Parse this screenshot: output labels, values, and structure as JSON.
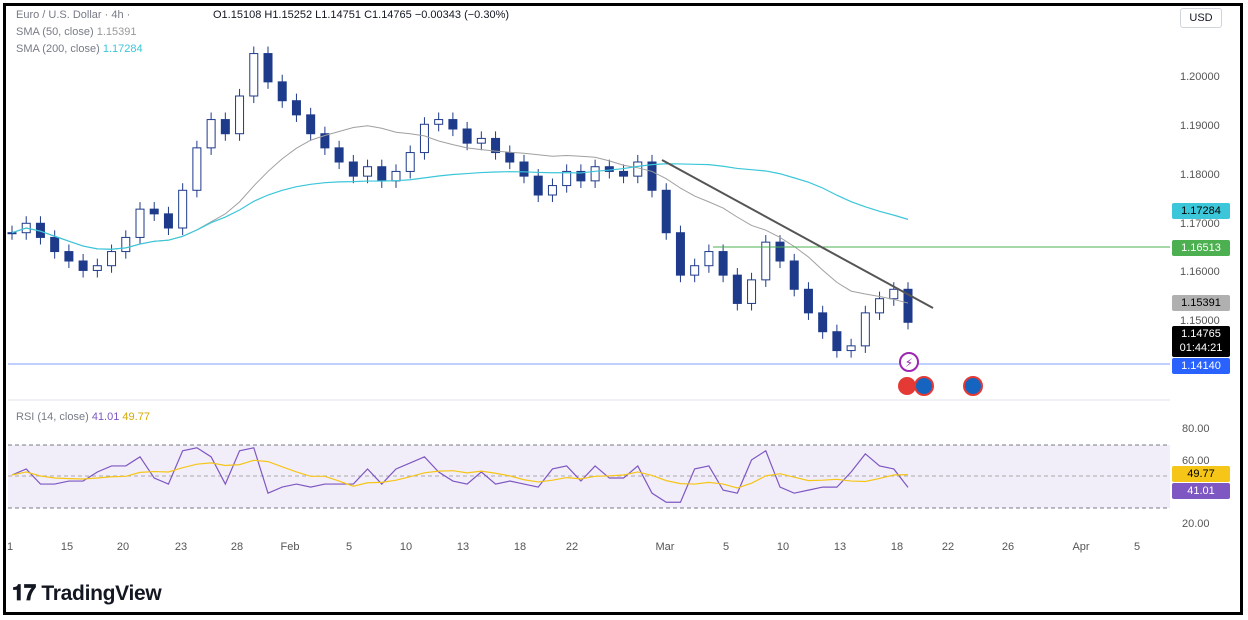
{
  "header": {
    "symbol": "Euro / U.S. Dollar · 4h ·",
    "ohlc": "O1.15108  H1.15252  L1.14751  C1.14765  −0.00343 (−0.30%)",
    "sma50_label": "SMA (50, close)",
    "sma50_value": "1.15391",
    "sma200_label": "SMA (200, close)",
    "sma200_value": "1.17284",
    "currency": "USD"
  },
  "price_axis": [
    "1.20000",
    "1.19000",
    "1.18000",
    "1.17000",
    "1.16000",
    "1.15000"
  ],
  "price_tags": {
    "sma200": "1.17284",
    "resistance": "1.16513",
    "sma50": "1.15391",
    "last": "1.14765",
    "countdown": "01:44:21",
    "support": "1.14140"
  },
  "rsi": {
    "label": "RSI (14, close)",
    "value": "41.01",
    "ma_value": "49.77",
    "axis": [
      "80.00",
      "60.00",
      "20.00"
    ]
  },
  "x_axis": [
    "1",
    "15",
    "20",
    "23",
    "28",
    "Feb",
    "5",
    "10",
    "13",
    "18",
    "22",
    "Mar",
    "5",
    "10",
    "13",
    "18",
    "22",
    "26",
    "Apr",
    "5"
  ],
  "brand": "TradingView",
  "colors": {
    "up": "#ffffff",
    "down": "#1e3a8a",
    "sma200": "#3bc6d9",
    "sma50": "#a0a0a0",
    "rsi": "#7e57c2",
    "rsi_ma": "#f5c518"
  },
  "chart_data": {
    "type": "candlestick",
    "title": "Euro / U.S. Dollar · 4h",
    "close_series_approx": [
      1.167,
      1.169,
      1.166,
      1.163,
      1.161,
      1.159,
      1.16,
      1.163,
      1.166,
      1.172,
      1.171,
      1.168,
      1.176,
      1.185,
      1.191,
      1.188,
      1.196,
      1.205,
      1.199,
      1.195,
      1.192,
      1.188,
      1.185,
      1.182,
      1.179,
      1.181,
      1.178,
      1.18,
      1.184,
      1.19,
      1.191,
      1.189,
      1.186,
      1.187,
      1.184,
      1.182,
      1.179,
      1.175,
      1.177,
      1.18,
      1.178,
      1.181,
      1.18,
      1.179,
      1.182,
      1.176,
      1.167,
      1.158,
      1.16,
      1.163,
      1.158,
      1.152,
      1.157,
      1.165,
      1.161,
      1.155,
      1.15,
      1.146,
      1.142,
      1.143,
      1.15,
      1.153,
      1.155,
      1.148
    ],
    "sma50_value": 1.15391,
    "sma200_value": 1.17284,
    "resistance_level": 1.16513,
    "support_level": 1.1414,
    "last_price": 1.14765,
    "ylim": [
      1.14,
      1.21
    ],
    "rsi_value": 41.01,
    "rsi_ma_value": 49.77,
    "rsi_levels": [
      70,
      50,
      30
    ]
  }
}
